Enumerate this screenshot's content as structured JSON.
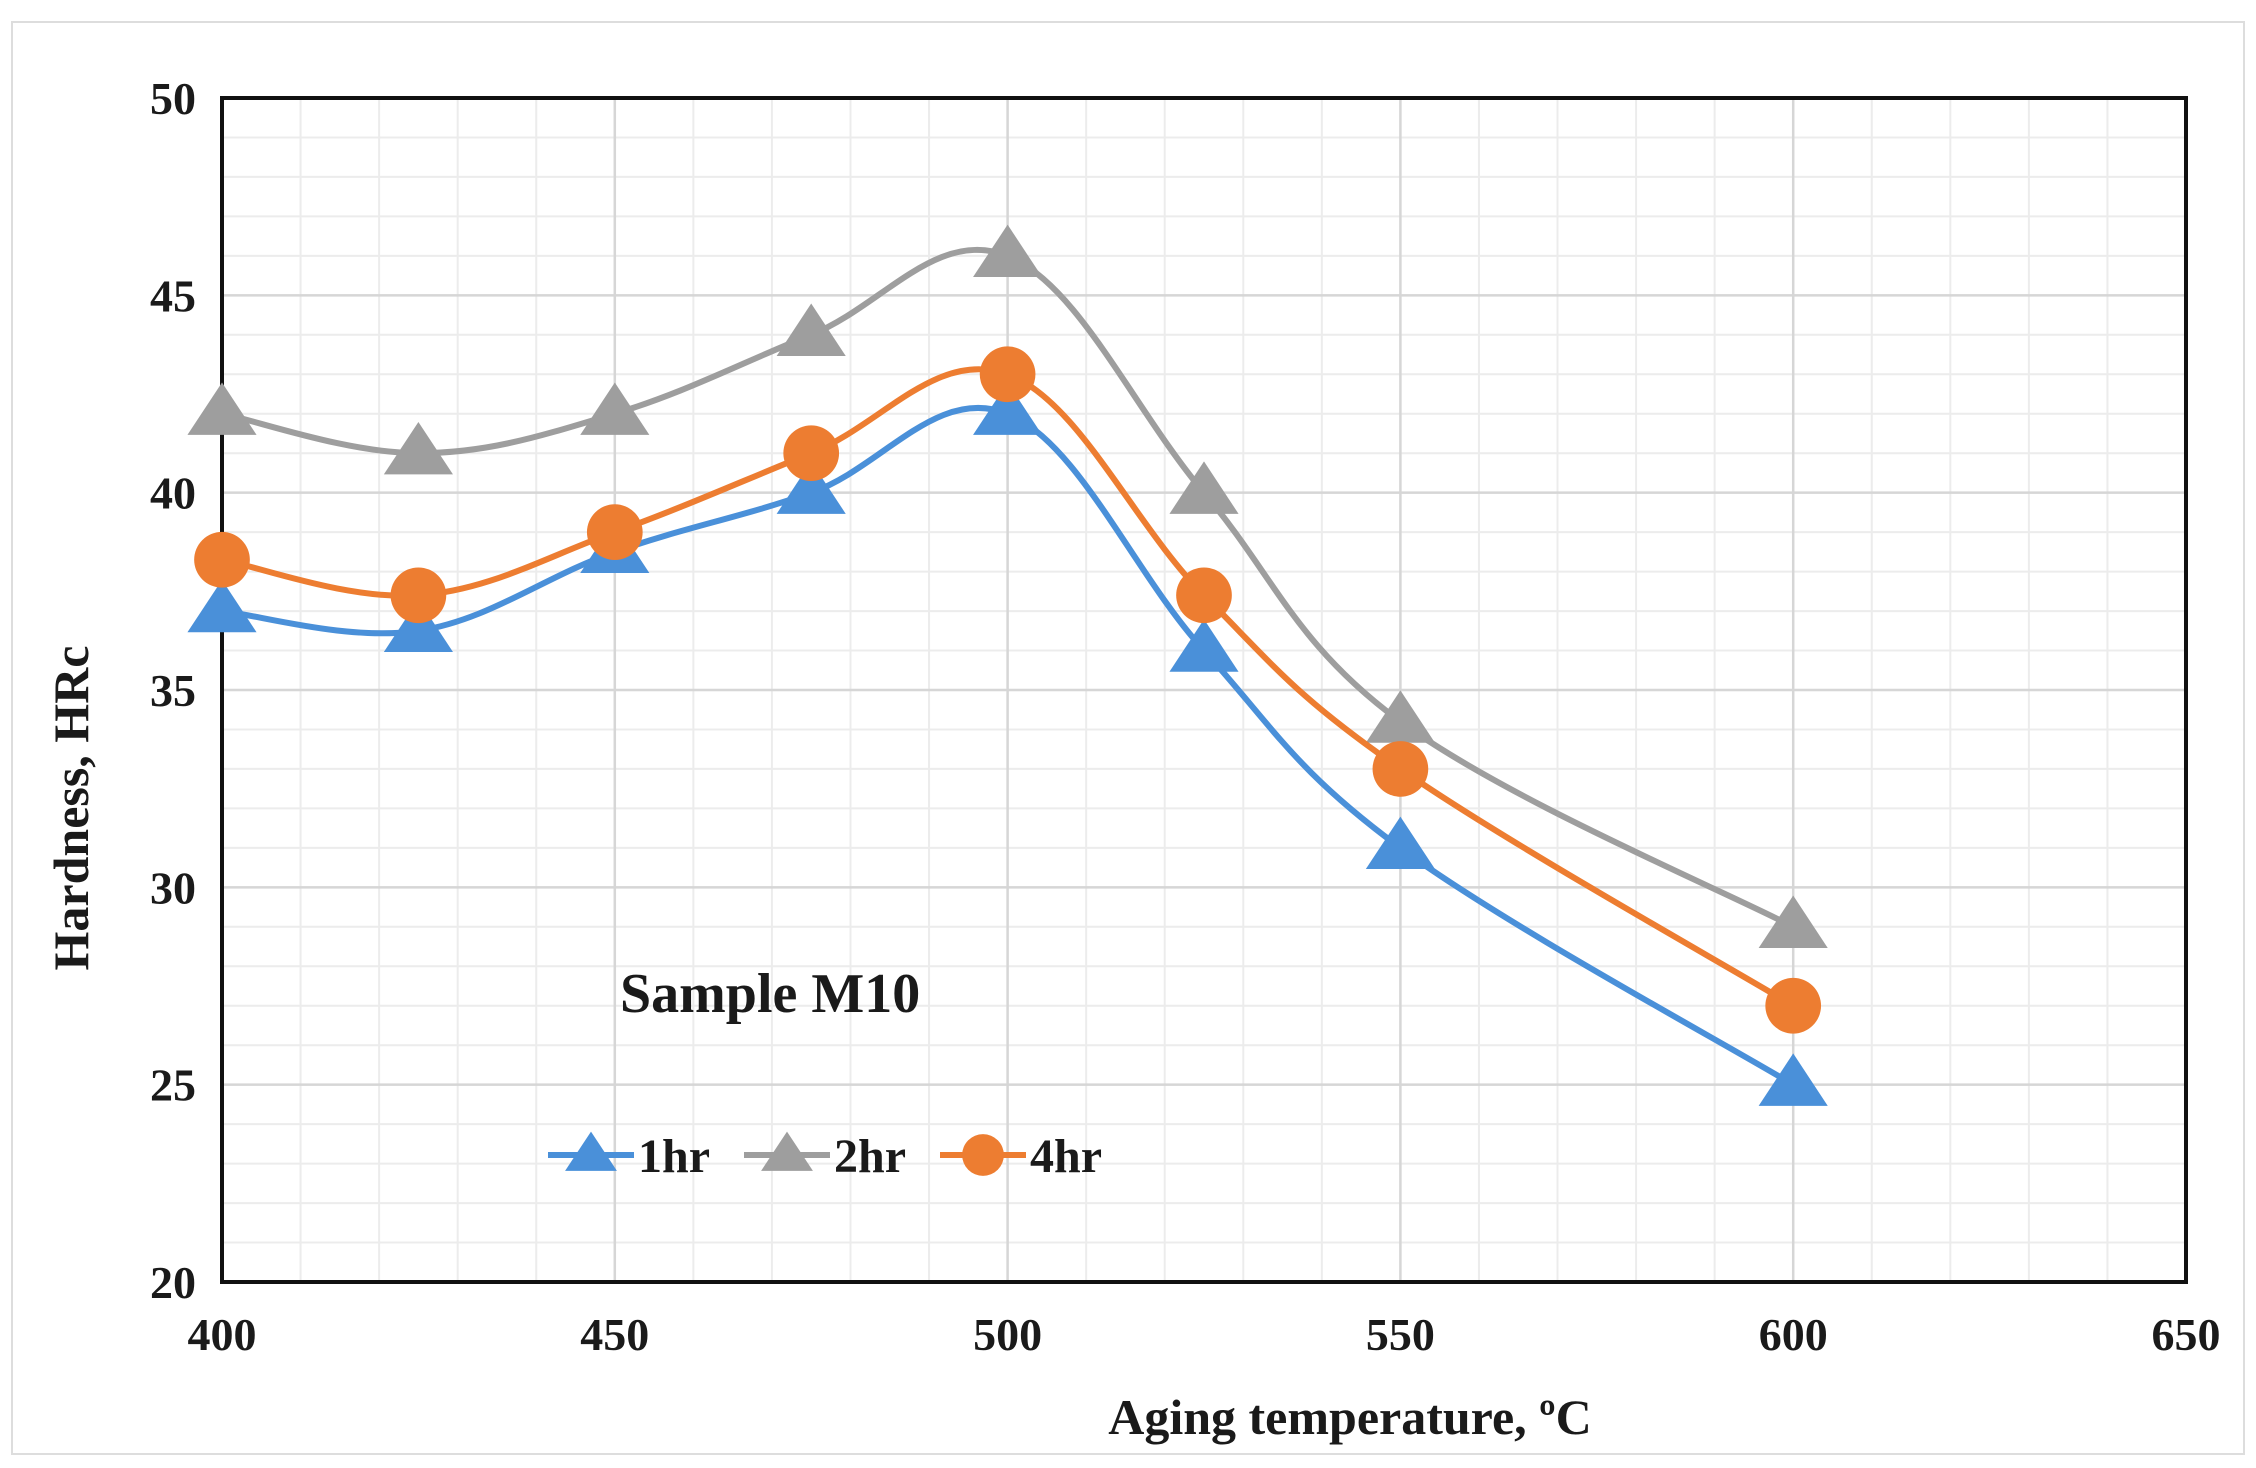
{
  "chart_data": {
    "type": "line",
    "title": "",
    "xlabel": "Aging temperature, ºC",
    "ylabel": "Hardness, HRc",
    "xlim": [
      400,
      650
    ],
    "ylim": [
      20,
      50
    ],
    "xticks": [
      400,
      450,
      500,
      550,
      600,
      650
    ],
    "yticks": [
      20,
      25,
      30,
      35,
      40,
      45,
      50
    ],
    "x_minor_step": 10,
    "y_minor_step": 1,
    "grid": true,
    "annotation": "Sample M10",
    "legend_position": "bottom-left",
    "x": [
      400,
      425,
      450,
      475,
      500,
      525,
      550,
      600
    ],
    "series": [
      {
        "name": "1hr",
        "color": "#4a90d9",
        "marker": "triangle",
        "values": [
          37,
          36.5,
          38.5,
          40,
          42,
          36,
          31,
          25
        ]
      },
      {
        "name": "2hr",
        "color": "#9e9e9e",
        "marker": "triangle",
        "values": [
          42,
          41,
          42,
          44,
          46,
          40,
          34.2,
          29
        ]
      },
      {
        "name": "4hr",
        "color": "#ed7d31",
        "marker": "circle",
        "values": [
          38.3,
          37.4,
          39,
          41,
          43,
          37.4,
          33,
          27
        ]
      }
    ]
  }
}
